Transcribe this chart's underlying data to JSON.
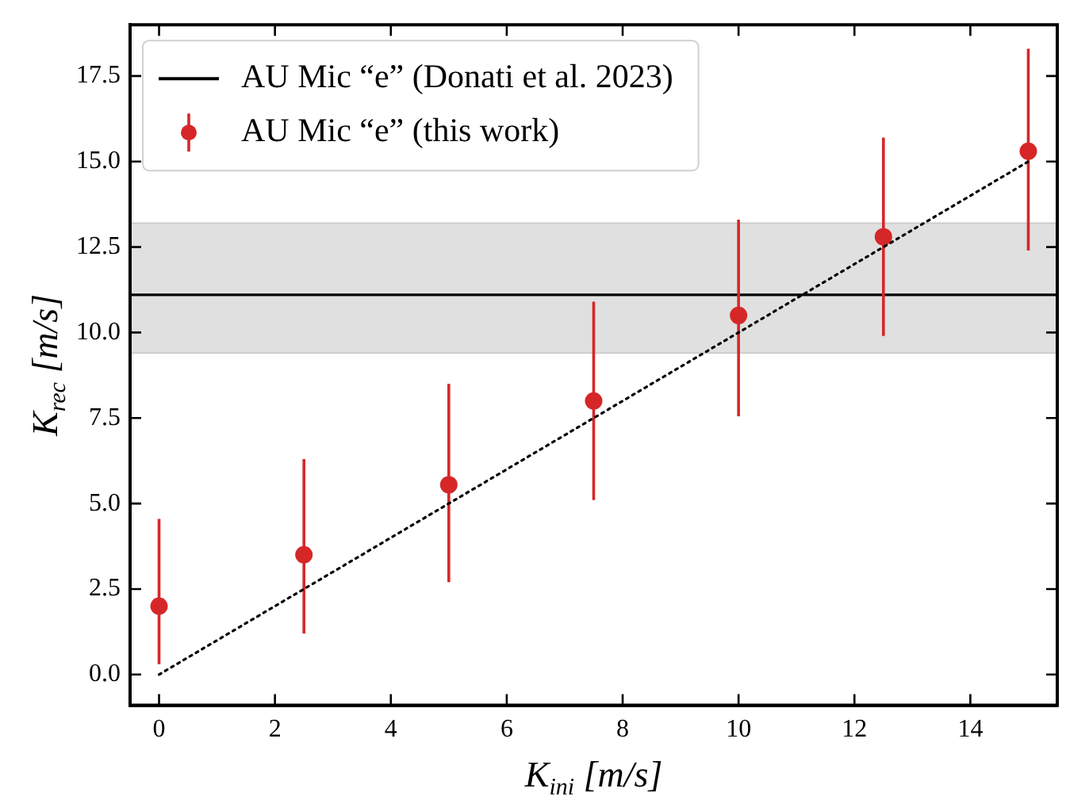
{
  "chart_data": {
    "type": "scatter",
    "xlabel": "K$_{ini}$ [m/s]",
    "ylabel": "K$_{rec}$ [m/s]",
    "xlim": [
      -0.5,
      15.5
    ],
    "xticks": [
      0,
      2,
      4,
      6,
      8,
      10,
      12,
      14
    ],
    "ylim": [
      -0.9,
      19
    ],
    "yticks": [
      {
        "value": 0,
        "label": "0.0"
      },
      {
        "value": 2.5,
        "label": "2.5"
      },
      {
        "value": 5,
        "label": "5.0"
      },
      {
        "value": 7.5,
        "label": "7.5"
      },
      {
        "value": 10,
        "label": "10.0"
      },
      {
        "value": 12.5,
        "label": "12.5"
      },
      {
        "value": 15,
        "label": "15.0"
      },
      {
        "value": 17.5,
        "label": "17.5"
      }
    ],
    "grid": false,
    "legend": "top left",
    "ref_lines": [
      {
        "axis": "y",
        "value": 11.1,
        "label": "AU Mic “e” (Donati et al. 2023)",
        "color": "#000000",
        "line_style": "solid"
      }
    ],
    "bands": [
      {
        "axis": "y",
        "from": 9.4,
        "to": 13.2,
        "color": "#e0e0e0"
      }
    ],
    "series": [
      {
        "type": "line",
        "color": "#000000",
        "x": [
          0,
          15
        ],
        "values": [
          0,
          15
        ],
        "line_style": "dotted",
        "marker": "none"
      },
      {
        "name": "AU Mic “e” (this work)",
        "color": "#d62728",
        "marker": "circle",
        "x": [
          0,
          2.5,
          5,
          7.5,
          10,
          12.5,
          15
        ],
        "values": [
          2.0,
          3.5,
          5.55,
          8.0,
          10.5,
          12.8,
          15.3
        ],
        "errors": [
          [
            0.3,
            4.55
          ],
          [
            1.2,
            6.3
          ],
          [
            2.7,
            8.5
          ],
          [
            5.1,
            10.9
          ],
          [
            7.55,
            13.3
          ],
          [
            9.9,
            15.7
          ],
          [
            12.4,
            18.3
          ]
        ]
      }
    ]
  }
}
